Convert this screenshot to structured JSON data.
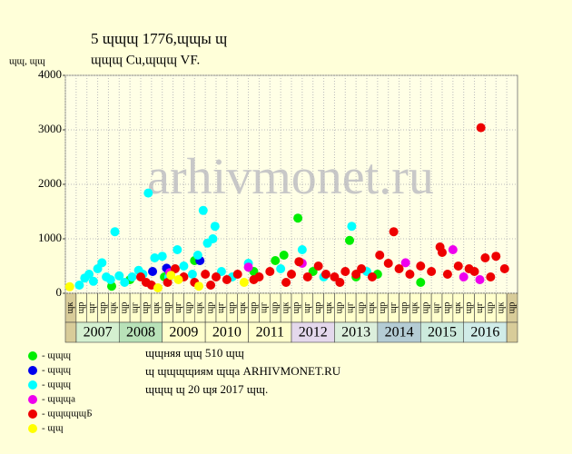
{
  "chart_data": {
    "type": "scatter",
    "title": "5 ɰɰɰ 1776,ɰɰы ɰ",
    "subtitle": "ɰɰɰ Cu,ɰɰɰ VF.",
    "y_label": "ɰɰ, ɰɰ",
    "watermark": "arhivmonet.ru",
    "ylim": [
      0,
      4000
    ],
    "yticks": [
      0,
      1000,
      2000,
      3000,
      4000
    ],
    "xlim": [
      0,
      42
    ],
    "grid": true,
    "columns": [
      "ɰк",
      "ɰр",
      "ɰг",
      "ɰр",
      "ɰк",
      "ɰр",
      "ɰг",
      "ɰр",
      "ɰк",
      "ɰр",
      "ɰг",
      "ɰр",
      "ɰк",
      "ɰр",
      "ɰг",
      "ɰр",
      "ɰк",
      "ɰр",
      "ɰг",
      "ɰр",
      "ɰк",
      "ɰр",
      "ɰг",
      "ɰр",
      "ɰк",
      "ɰр",
      "ɰг",
      "ɰр",
      "ɰк",
      "ɰр",
      "ɰг",
      "ɰр",
      "ɰк",
      "ɰр",
      "ɰг",
      "ɰр",
      "ɰк",
      "ɰр",
      "ɰг",
      "ɰр",
      "ɰк",
      "ɰр"
    ],
    "years": [
      "2007",
      "2008",
      "2009",
      "2010",
      "2011",
      "2012",
      "2013",
      "2014",
      "2015",
      "2016"
    ],
    "year_colors": [
      "#d4f0d0",
      "#b8e2b8",
      "#ffffcc",
      "#ffffcc",
      "#ffffcc",
      "#e4d8ec",
      "#dcefdc",
      "#b4ccd4",
      "#cceadc",
      "#d0ece8"
    ],
    "series": [
      {
        "name": "- ɰɰɰ",
        "color": "#00ee00",
        "x": [
          4.3,
          6,
          9.2,
          12,
          17.5,
          19.5,
          20.3,
          21.6,
          23,
          26.4,
          27,
          29,
          33
        ],
        "values": [
          130,
          250,
          300,
          600,
          400,
          600,
          700,
          1380,
          400,
          970,
          300,
          350,
          200
        ]
      },
      {
        "name": "- ɰɰɰ",
        "color": "#0000ee",
        "x": [
          8.1,
          9.4,
          12.5
        ],
        "values": [
          400,
          460,
          600
        ]
      },
      {
        "name": "- ɰɰɰ",
        "color": "#00ffff",
        "x": [
          1.3,
          1.8,
          2.2,
          2.6,
          3,
          3.4,
          3.8,
          4.2,
          4.6,
          5,
          5.5,
          6.2,
          6.8,
          7.2,
          7.7,
          8.3,
          9,
          9.6,
          10.4,
          11,
          11.8,
          12.3,
          12.8,
          13.2,
          13.7,
          13.9,
          14.5,
          15.5,
          17,
          20,
          22,
          24,
          26.6,
          28
        ],
        "values": [
          150,
          280,
          350,
          220,
          450,
          560,
          300,
          250,
          1130,
          320,
          200,
          300,
          420,
          350,
          1840,
          650,
          680,
          300,
          800,
          500,
          350,
          700,
          1520,
          920,
          1000,
          1230,
          400,
          300,
          550,
          450,
          800,
          300,
          1230,
          400
        ]
      },
      {
        "name": "- ɰɰɰа",
        "color": "#ee00ee",
        "x": [
          9.7,
          17,
          22,
          31.6,
          36,
          37,
          38.5
        ],
        "values": [
          380,
          480,
          550,
          560,
          800,
          300,
          250
        ]
      },
      {
        "name": "- ɰɰɰɰɰБ",
        "color": "#ee0000",
        "x": [
          7,
          7.5,
          8,
          9.5,
          10.2,
          11,
          12,
          13,
          13.5,
          14,
          15,
          16,
          17.5,
          18,
          19,
          20.5,
          21,
          21.7,
          22.5,
          23.5,
          24.2,
          25,
          25.5,
          26,
          27,
          27.5,
          28.5,
          29.2,
          30,
          30.5,
          31,
          32,
          33,
          34,
          34.8,
          35,
          35.5,
          36.5,
          37.5,
          38,
          38.6,
          39,
          39.5,
          40,
          40.8
        ],
        "values": [
          300,
          200,
          150,
          200,
          450,
          300,
          200,
          350,
          150,
          300,
          250,
          350,
          250,
          300,
          400,
          200,
          350,
          580,
          300,
          500,
          350,
          300,
          200,
          400,
          350,
          450,
          300,
          700,
          550,
          1130,
          450,
          350,
          500,
          400,
          850,
          750,
          350,
          500,
          450,
          400,
          3040,
          650,
          300,
          680,
          450
        ]
      },
      {
        "name": "- ɰɰ",
        "color": "#ffff00",
        "x": [
          0.4,
          8.6,
          9.8,
          10.5,
          12.4,
          16.6
        ],
        "values": [
          120,
          100,
          330,
          250,
          130,
          200
        ]
      }
    ],
    "notes": [
      "ɰɰняя ɰɰ 510 ɰɰ",
      "ɰ ɰɰɰɰиям ɰɰа ARHIVMONET.RU",
      "ɰɰɰ ɰ 20 ɰя 2017 ɰɰ."
    ]
  }
}
